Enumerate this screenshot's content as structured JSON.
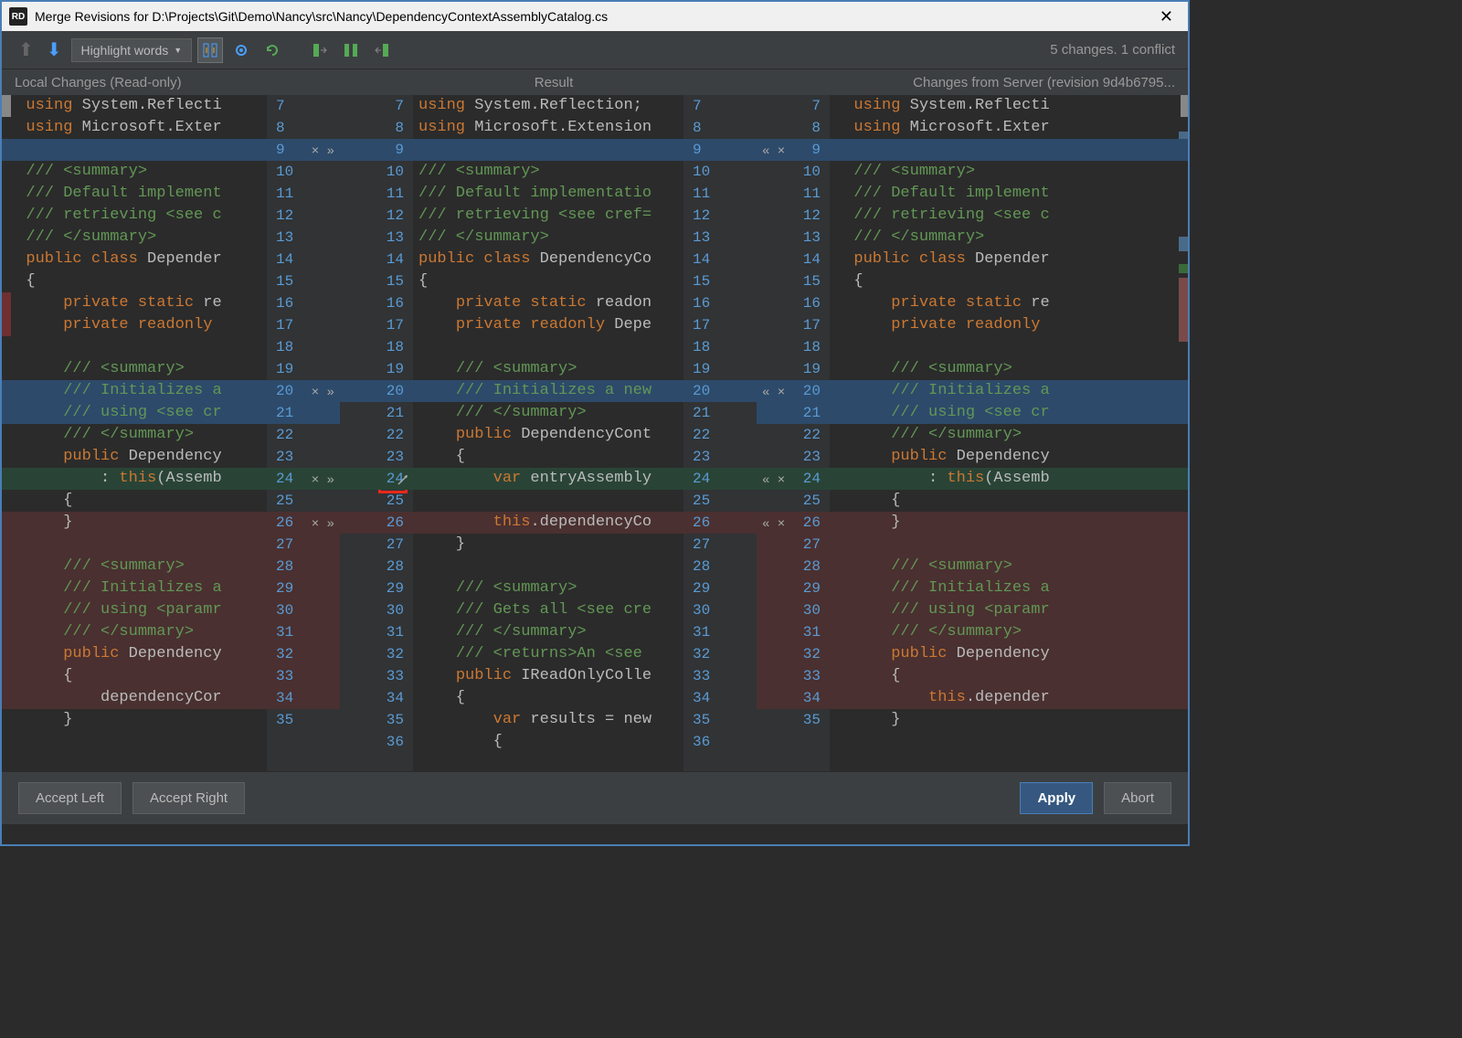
{
  "window": {
    "logo": "RD",
    "title": "Merge Revisions for D:\\Projects\\Git\\Demo\\Nancy\\src\\Nancy\\DependencyContextAssemblyCatalog.cs"
  },
  "toolbar": {
    "highlight_label": "Highlight words",
    "status": "5 changes. 1 conflict"
  },
  "headers": {
    "left": "Local Changes (Read-only)",
    "mid": "Result",
    "right": "Changes from Server (revision 9d4b6795..."
  },
  "footer": {
    "accept_left": "Accept Left",
    "accept_right": "Accept Right",
    "apply": "Apply",
    "abort": "Abort"
  },
  "colors": {
    "hl_blue": "#2d4a6a",
    "hl_green": "#294436",
    "hl_red": "#4a3030",
    "bg": "#2b2b2b",
    "gutter_bg": "#313335",
    "keyword": "#cc7832",
    "comment": "#629755",
    "type": "#a9b7c6",
    "lineno": "#5a9bd4"
  },
  "line_numbers": {
    "left": [
      "7",
      "8",
      "9",
      "10",
      "11",
      "12",
      "13",
      "14",
      "15",
      "16",
      "17",
      "18",
      "19",
      "20",
      "21",
      "22",
      "23",
      "24",
      "25",
      "26",
      "27",
      "28",
      "29",
      "30",
      "31",
      "32",
      "33",
      "34",
      "35"
    ],
    "mid": [
      "7",
      "8",
      "9",
      "10",
      "11",
      "12",
      "13",
      "14",
      "15",
      "16",
      "17",
      "18",
      "19",
      "20",
      "21",
      "22",
      "23",
      "24",
      "25",
      "26",
      "27",
      "28",
      "29",
      "30",
      "31",
      "32",
      "33",
      "34",
      "35",
      "36"
    ],
    "right": [
      "7",
      "8",
      "9",
      "10",
      "11",
      "12",
      "13",
      "14",
      "15",
      "16",
      "17",
      "18",
      "19",
      "20",
      "21",
      "22",
      "23",
      "24",
      "25",
      "26",
      "27",
      "28",
      "29",
      "30",
      "31",
      "32",
      "33",
      "34",
      "35"
    ]
  },
  "code_left": [
    {
      "hl": "",
      "html": "<span class='tk-keyword'>using</span> System.Reflecti"
    },
    {
      "hl": "",
      "html": "<span class='tk-keyword'>using</span> Microsoft.Exter"
    },
    {
      "hl": "hl-blue",
      "html": ""
    },
    {
      "hl": "",
      "html": "<span class='tk-comment'>/// &lt;summary&gt;</span>"
    },
    {
      "hl": "",
      "html": "<span class='tk-comment'>/// Default implement</span>"
    },
    {
      "hl": "",
      "html": "<span class='tk-comment'>/// retrieving &lt;see c</span>"
    },
    {
      "hl": "",
      "html": "<span class='tk-comment'>/// &lt;/summary&gt;</span>"
    },
    {
      "hl": "",
      "html": "<span class='tk-keyword'>public class</span> Depender"
    },
    {
      "hl": "",
      "html": "{"
    },
    {
      "hl": "",
      "html": "    <span class='tk-keyword'>private static</span> re"
    },
    {
      "hl": "",
      "html": "    <span class='tk-keyword'>private readonly</span> "
    },
    {
      "hl": "",
      "html": ""
    },
    {
      "hl": "",
      "html": "    <span class='tk-comment'>/// &lt;summary&gt;</span>"
    },
    {
      "hl": "hl-blue",
      "html": "    <span class='tk-comment'>/// Initializes a</span>"
    },
    {
      "hl": "hl-blue",
      "html": "    <span class='tk-comment'>/// using &lt;see cr</span>"
    },
    {
      "hl": "",
      "html": "    <span class='tk-comment'>/// &lt;/summary&gt;</span>"
    },
    {
      "hl": "",
      "html": "    <span class='tk-keyword'>public</span> Dependency"
    },
    {
      "hl": "hl-green",
      "html": "        : <span class='tk-keyword'>this</span>(Assemb"
    },
    {
      "hl": "",
      "html": "    {"
    },
    {
      "hl": "hl-red",
      "html": "    }"
    },
    {
      "hl": "hl-red",
      "html": ""
    },
    {
      "hl": "hl-red",
      "html": "    <span class='tk-comment'>/// &lt;summary&gt;</span>"
    },
    {
      "hl": "hl-red",
      "html": "    <span class='tk-comment'>/// Initializes a</span>"
    },
    {
      "hl": "hl-red",
      "html": "    <span class='tk-comment'>/// using &lt;paramr</span>"
    },
    {
      "hl": "hl-red",
      "html": "    <span class='tk-comment'>/// &lt;/summary&gt;</span>"
    },
    {
      "hl": "hl-red",
      "html": "    <span class='tk-keyword'>public</span> Dependency"
    },
    {
      "hl": "hl-red",
      "html": "    {"
    },
    {
      "hl": "hl-red",
      "html": "        dependencyCor"
    },
    {
      "hl": "",
      "html": "    }"
    }
  ],
  "code_mid": [
    {
      "hl": "",
      "html": "<span class='tk-keyword'>using</span> System.Reflection;"
    },
    {
      "hl": "",
      "html": "<span class='tk-keyword'>using</span> Microsoft.Extension"
    },
    {
      "hl": "hl-blue",
      "html": ""
    },
    {
      "hl": "",
      "html": "<span class='tk-comment'>/// &lt;summary&gt;</span>"
    },
    {
      "hl": "",
      "html": "<span class='tk-comment'>/// Default implementatio</span>"
    },
    {
      "hl": "",
      "html": "<span class='tk-comment'>/// retrieving &lt;see cref=</span>"
    },
    {
      "hl": "",
      "html": "<span class='tk-comment'>/// &lt;/summary&gt;</span>"
    },
    {
      "hl": "",
      "html": "<span class='tk-keyword'>public class</span> DependencyCo"
    },
    {
      "hl": "",
      "html": "{"
    },
    {
      "hl": "",
      "html": "    <span class='tk-keyword'>private static</span> readon"
    },
    {
      "hl": "",
      "html": "    <span class='tk-keyword'>private readonly</span> Depe"
    },
    {
      "hl": "",
      "html": ""
    },
    {
      "hl": "",
      "html": "    <span class='tk-comment'>/// &lt;summary&gt;</span>"
    },
    {
      "hl": "hl-blue",
      "html": "    <span class='tk-comment'>/// Initializes a new</span>"
    },
    {
      "hl": "",
      "html": "    <span class='tk-comment'>/// &lt;/summary&gt;</span>"
    },
    {
      "hl": "",
      "html": "    <span class='tk-keyword'>public</span> DependencyCont"
    },
    {
      "hl": "",
      "html": "    {"
    },
    {
      "hl": "hl-green",
      "html": "        <span class='tk-keyword'>var</span> entryAssembly"
    },
    {
      "hl": "",
      "html": ""
    },
    {
      "hl": "hl-red",
      "html": "        <span class='tk-keyword'>this</span>.dependencyCo"
    },
    {
      "hl": "",
      "html": "    }"
    },
    {
      "hl": "",
      "html": ""
    },
    {
      "hl": "",
      "html": "    <span class='tk-comment'>/// &lt;summary&gt;</span>"
    },
    {
      "hl": "",
      "html": "    <span class='tk-comment'>/// Gets all &lt;see cre</span>"
    },
    {
      "hl": "",
      "html": "    <span class='tk-comment'>/// &lt;/summary&gt;</span>"
    },
    {
      "hl": "",
      "html": "    <span class='tk-comment'>/// &lt;returns&gt;An &lt;see </span>"
    },
    {
      "hl": "",
      "html": "    <span class='tk-keyword'>public</span> IReadOnlyColle"
    },
    {
      "hl": "",
      "html": "    {"
    },
    {
      "hl": "",
      "html": "        <span class='tk-keyword'>var</span> results = new"
    },
    {
      "hl": "",
      "html": "        {"
    }
  ],
  "code_right": [
    {
      "hl": "",
      "html": "<span class='tk-keyword'>using</span> System.Reflecti"
    },
    {
      "hl": "",
      "html": "<span class='tk-keyword'>using</span> Microsoft.Exter"
    },
    {
      "hl": "hl-blue",
      "html": ""
    },
    {
      "hl": "",
      "html": "<span class='tk-comment'>/// &lt;summary&gt;</span>"
    },
    {
      "hl": "",
      "html": "<span class='tk-comment'>/// Default implement</span>"
    },
    {
      "hl": "",
      "html": "<span class='tk-comment'>/// retrieving &lt;see c</span>"
    },
    {
      "hl": "",
      "html": "<span class='tk-comment'>/// &lt;/summary&gt;</span>"
    },
    {
      "hl": "",
      "html": "<span class='tk-keyword'>public class</span> Depender"
    },
    {
      "hl": "",
      "html": "{"
    },
    {
      "hl": "",
      "html": "    <span class='tk-keyword'>private static</span> re"
    },
    {
      "hl": "",
      "html": "    <span class='tk-keyword'>private readonly </span>"
    },
    {
      "hl": "",
      "html": ""
    },
    {
      "hl": "",
      "html": "    <span class='tk-comment'>/// &lt;summary&gt;</span>"
    },
    {
      "hl": "hl-blue",
      "html": "    <span class='tk-comment'>/// Initializes a</span>"
    },
    {
      "hl": "hl-blue",
      "html": "    <span class='tk-comment'>/// using &lt;see cr</span>"
    },
    {
      "hl": "",
      "html": "    <span class='tk-comment'>/// &lt;/summary&gt;</span>"
    },
    {
      "hl": "",
      "html": "    <span class='tk-keyword'>public</span> Dependency"
    },
    {
      "hl": "hl-green",
      "html": "        : <span class='tk-keyword'>this</span>(Assemb"
    },
    {
      "hl": "",
      "html": "    {"
    },
    {
      "hl": "hl-red",
      "html": "    }"
    },
    {
      "hl": "hl-red",
      "html": ""
    },
    {
      "hl": "hl-red",
      "html": "    <span class='tk-comment'>/// &lt;summary&gt;</span>"
    },
    {
      "hl": "hl-red",
      "html": "    <span class='tk-comment'>/// Initializes a</span>"
    },
    {
      "hl": "hl-red",
      "html": "    <span class='tk-comment'>/// using &lt;paramr</span>"
    },
    {
      "hl": "hl-red",
      "html": "    <span class='tk-comment'>/// &lt;/summary&gt;</span>"
    },
    {
      "hl": "hl-red",
      "html": "    <span class='tk-keyword'>public</span> Dependency"
    },
    {
      "hl": "hl-red",
      "html": "    {"
    },
    {
      "hl": "hl-red",
      "html": "        <span class='tk-keyword'>this</span>.depender"
    },
    {
      "hl": "",
      "html": "    }"
    }
  ],
  "gutter_markers_left": {
    "2": "× »",
    "13": "× »",
    "17": "× »",
    "19": "× »"
  },
  "gutter_markers_right": {
    "2": "« ×",
    "13": "« ×",
    "17": "« ×",
    "19": "« ×"
  },
  "gutter_hl": {
    "left": {
      "2": "hl-blue",
      "13": "hl-blue",
      "14": "hl-blue",
      "17": "hl-green",
      "19": "hl-red",
      "20": "hl-red",
      "21": "hl-red",
      "22": "hl-red",
      "23": "hl-red",
      "24": "hl-red",
      "25": "hl-red",
      "26": "hl-red",
      "27": "hl-red"
    },
    "mid": {
      "2": "hl-blue",
      "13": "hl-blue",
      "17": "hl-green",
      "19": "hl-red"
    },
    "right": {
      "2": "hl-blue",
      "13": "hl-blue",
      "14": "hl-blue",
      "17": "hl-green",
      "19": "hl-red",
      "20": "hl-red",
      "21": "hl-red",
      "22": "hl-red",
      "23": "hl-red",
      "24": "hl-red",
      "25": "hl-red",
      "26": "hl-red",
      "27": "hl-red"
    }
  }
}
